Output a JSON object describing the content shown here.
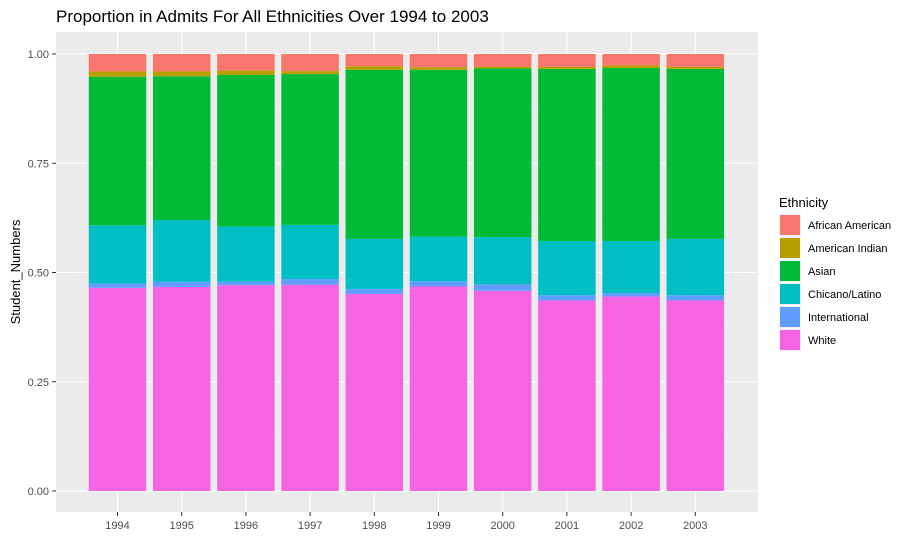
{
  "chart_data": {
    "type": "bar",
    "stacked": true,
    "title": "Proportion in Admits For All Ethnicities Over 1994 to 2003",
    "xlabel": "",
    "ylabel": "Student_Numbers",
    "ylim": [
      0,
      1.04
    ],
    "yticks": [
      "0.00",
      "0.25",
      "0.50",
      "0.75",
      "1.00"
    ],
    "categories": [
      "1994",
      "1995",
      "1996",
      "1997",
      "1998",
      "1999",
      "2000",
      "2001",
      "2002",
      "2003"
    ],
    "series": [
      {
        "name": "White",
        "color": "#F564E3",
        "values": [
          0.465,
          0.467,
          0.471,
          0.472,
          0.451,
          0.468,
          0.458,
          0.436,
          0.445,
          0.436
        ]
      },
      {
        "name": "International",
        "color": "#619CFF",
        "values": [
          0.01,
          0.012,
          0.008,
          0.013,
          0.011,
          0.012,
          0.015,
          0.012,
          0.008,
          0.012
        ]
      },
      {
        "name": "Chicano/Latino",
        "color": "#00BFC4",
        "values": [
          0.133,
          0.141,
          0.126,
          0.124,
          0.115,
          0.102,
          0.108,
          0.124,
          0.119,
          0.129
        ]
      },
      {
        "name": "Asian",
        "color": "#00BA38",
        "values": [
          0.34,
          0.329,
          0.347,
          0.345,
          0.387,
          0.382,
          0.386,
          0.394,
          0.396,
          0.389
        ]
      },
      {
        "name": "American Indian",
        "color": "#B79F00",
        "values": [
          0.012,
          0.011,
          0.01,
          0.007,
          0.008,
          0.006,
          0.004,
          0.005,
          0.006,
          0.005
        ]
      },
      {
        "name": "African American",
        "color": "#F8766D",
        "values": [
          0.04,
          0.04,
          0.038,
          0.039,
          0.028,
          0.03,
          0.029,
          0.029,
          0.026,
          0.029
        ]
      }
    ],
    "legend": {
      "title": "Ethnicity",
      "placement": "right",
      "order": [
        "African American",
        "American Indian",
        "Asian",
        "Chicano/Latino",
        "International",
        "White"
      ]
    },
    "grid": true,
    "panel_background": "#EBEBEB"
  }
}
